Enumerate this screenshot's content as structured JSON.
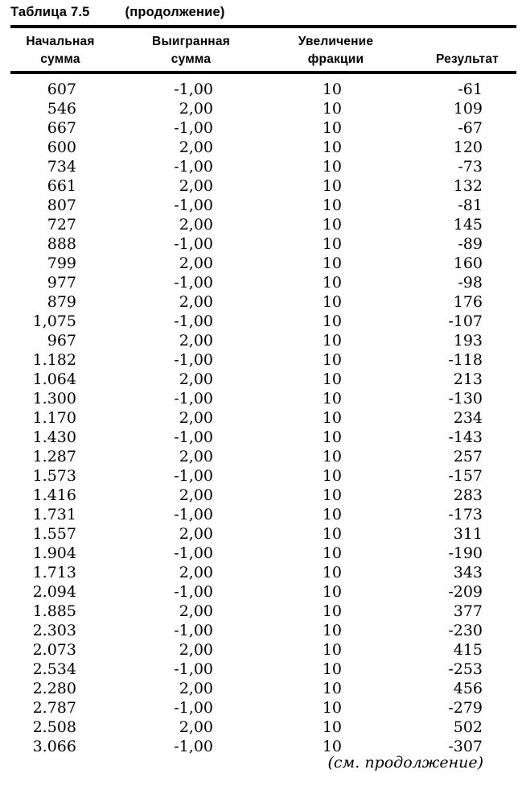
{
  "page": {
    "title": "Таблица 7.5",
    "continuation": "(продолжение)",
    "footer_note": "(см. продолжение)"
  },
  "table": {
    "headers": [
      {
        "line1": "Начальная",
        "line2": "сумма"
      },
      {
        "line1": "Выигранная",
        "line2": "сумма"
      },
      {
        "line1": "Увеличение",
        "line2": "фракции"
      },
      {
        "line1": "",
        "line2": "Результат"
      }
    ],
    "rows": [
      [
        "607",
        "-1,00",
        "10",
        "-61"
      ],
      [
        "546",
        "2,00",
        "10",
        "109"
      ],
      [
        "667",
        "-1,00",
        "10",
        "-67"
      ],
      [
        "600",
        "2,00",
        "10",
        "120"
      ],
      [
        "734",
        "-1,00",
        "10",
        "-73"
      ],
      [
        "661",
        "2,00",
        "10",
        "132"
      ],
      [
        "807",
        "-1,00",
        "10",
        "-81"
      ],
      [
        "727",
        "2,00",
        "10",
        "145"
      ],
      [
        "888",
        "-1,00",
        "10",
        "-89"
      ],
      [
        "799",
        "2,00",
        "10",
        "160"
      ],
      [
        "977",
        "-1,00",
        "10",
        "-98"
      ],
      [
        "879",
        "2,00",
        "10",
        "176"
      ],
      [
        "1,075",
        "-1,00",
        "10",
        "-107"
      ],
      [
        "967",
        "2,00",
        "10",
        "193"
      ],
      [
        "1.182",
        "-1,00",
        "10",
        "-118"
      ],
      [
        "1.064",
        "2,00",
        "10",
        "213"
      ],
      [
        "1.300",
        "-1,00",
        "10",
        "-130"
      ],
      [
        "1.170",
        "2,00",
        "10",
        "234"
      ],
      [
        "1.430",
        "-1,00",
        "10",
        "-143"
      ],
      [
        "1.287",
        "2,00",
        "10",
        "257"
      ],
      [
        "1.573",
        "-1,00",
        "10",
        "-157"
      ],
      [
        "1.416",
        "2,00",
        "10",
        "283"
      ],
      [
        "1.731",
        "-1,00",
        "10",
        "-173"
      ],
      [
        "1.557",
        "2,00",
        "10",
        "311"
      ],
      [
        "1.904",
        "-1,00",
        "10",
        "-190"
      ],
      [
        "1.713",
        "2,00",
        "10",
        "343"
      ],
      [
        "2.094",
        "-1,00",
        "10",
        "-209"
      ],
      [
        "1.885",
        "2,00",
        "10",
        "377"
      ],
      [
        "2.303",
        "-1,00",
        "10",
        "-230"
      ],
      [
        "2.073",
        "2,00",
        "10",
        "415"
      ],
      [
        "2.534",
        "-1,00",
        "10",
        "-253"
      ],
      [
        "2.280",
        "2,00",
        "10",
        "456"
      ],
      [
        "2.787",
        "-1,00",
        "10",
        "-279"
      ],
      [
        "2.508",
        "2,00",
        "10",
        "502"
      ],
      [
        "3.066",
        "-1,00",
        "10",
        "-307"
      ]
    ]
  },
  "colors": {
    "ink": "#000000",
    "paper": "#ffffff"
  }
}
